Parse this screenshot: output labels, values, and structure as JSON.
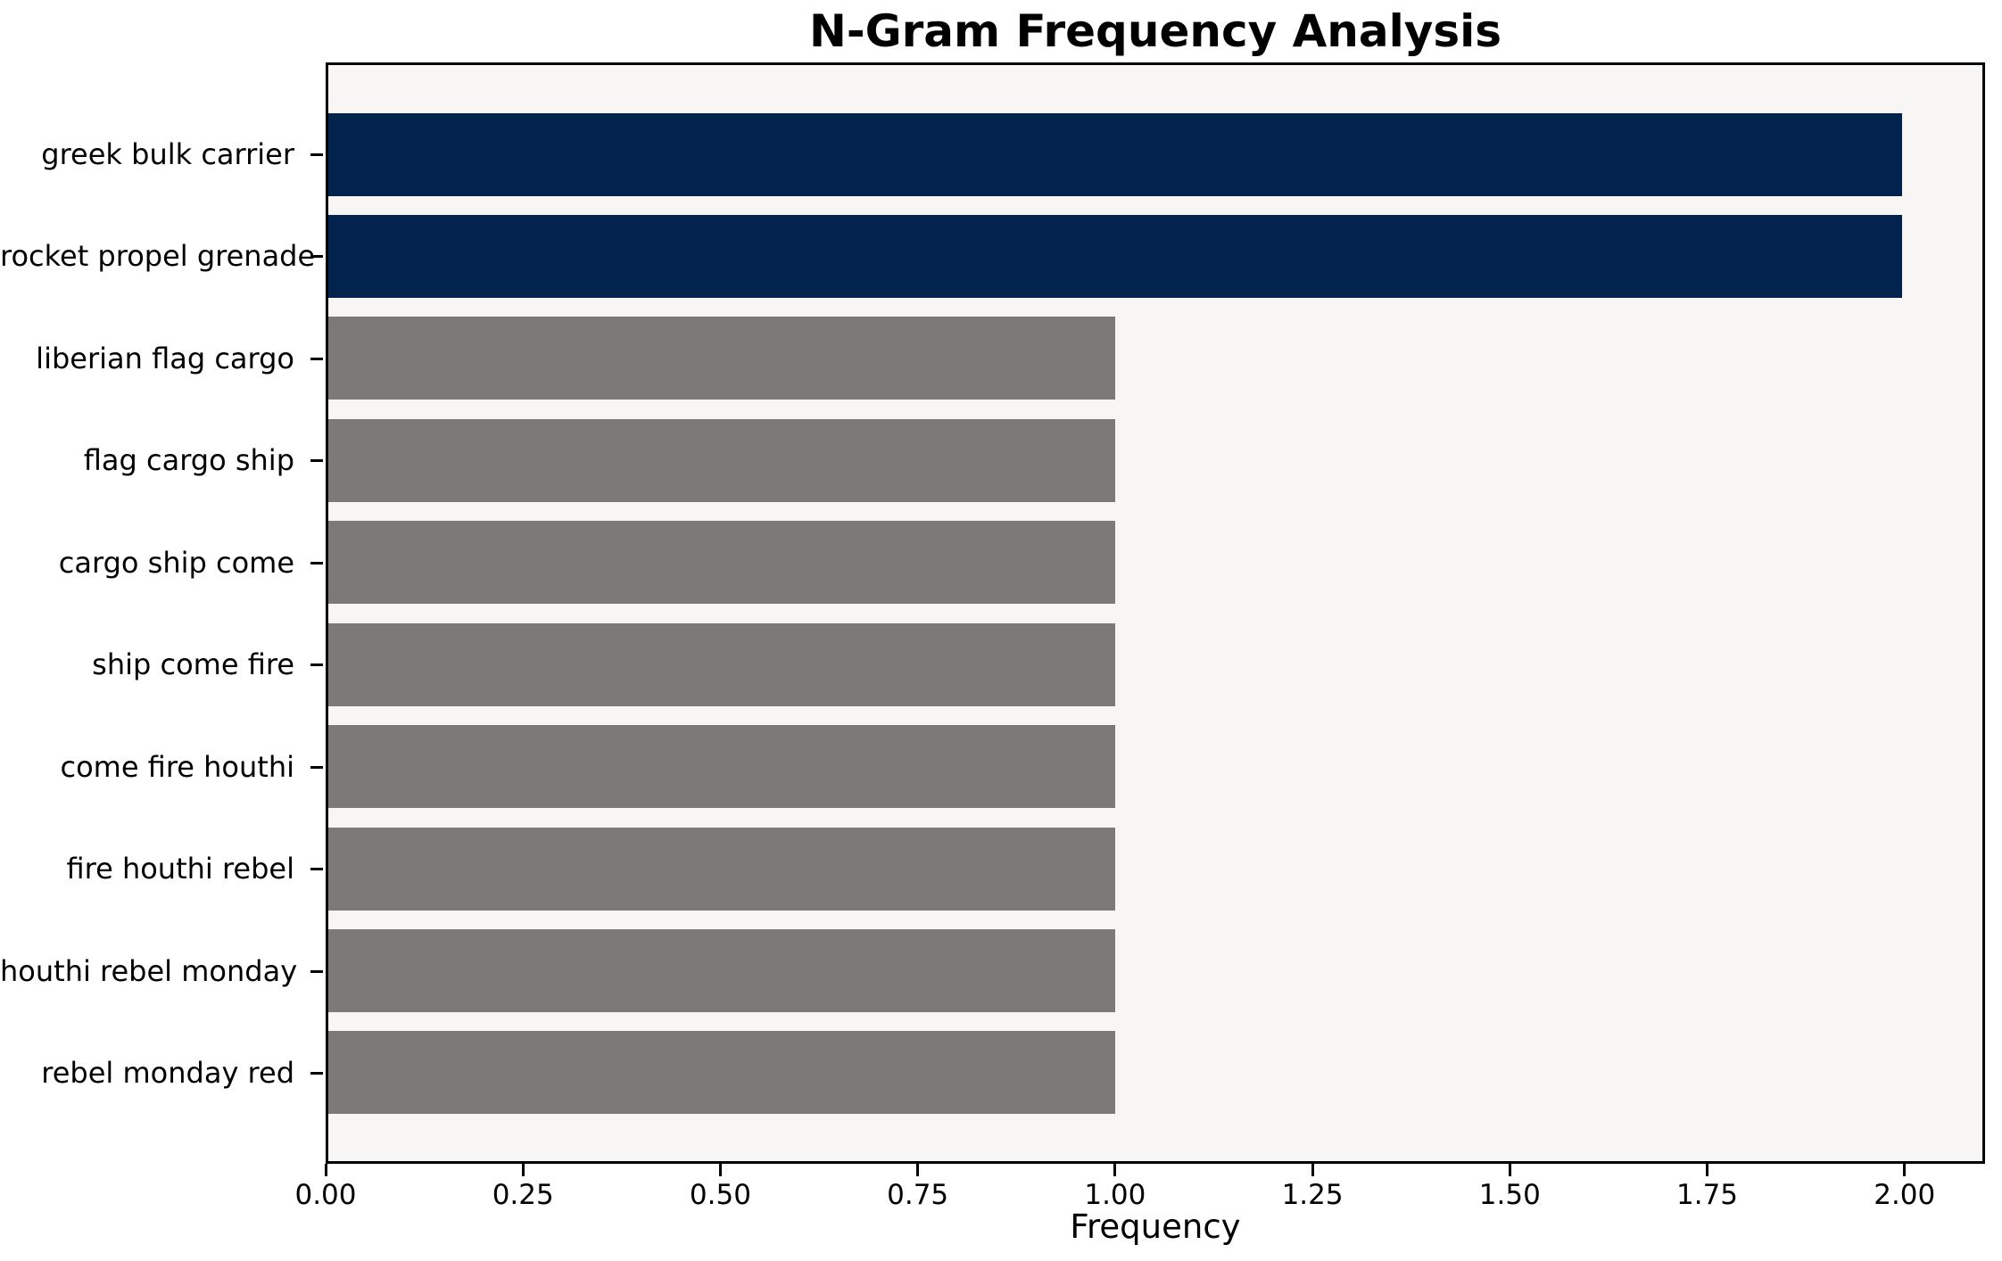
{
  "chart_data": {
    "type": "bar",
    "orientation": "horizontal",
    "title": "N-Gram Frequency Analysis",
    "xlabel": "Frequency",
    "ylabel": "",
    "categories": [
      "greek bulk carrier",
      "rocket propel grenade",
      "liberian flag cargo",
      "flag cargo ship",
      "cargo ship come",
      "ship come fire",
      "come fire houthi",
      "fire houthi rebel",
      "houthi rebel monday",
      "rebel monday red"
    ],
    "values": [
      2,
      2,
      1,
      1,
      1,
      1,
      1,
      1,
      1,
      1
    ],
    "bar_colors": [
      "#02234d",
      "#02234d",
      "#7b7a77",
      "#7b7a77",
      "#7b7a77",
      "#7b7a77",
      "#7b7a77",
      "#7b7a77",
      "#7b7a77",
      "#7b7a77"
    ],
    "xlim": [
      0,
      2.102
    ],
    "xticks": [
      0.0,
      0.25,
      0.5,
      0.75,
      1.0,
      1.25,
      1.5,
      1.75,
      2.0
    ],
    "xtick_labels": [
      "0.00",
      "0.25",
      "0.50",
      "0.75",
      "1.00",
      "1.25",
      "1.50",
      "1.75",
      "2.00"
    ],
    "grid": false,
    "legend": null,
    "colors": {
      "highlight": "#02234d",
      "default": "#7b7a77",
      "plot_bg": "#f7f6f5",
      "figure_bg": "#ffffff",
      "spine": "#000000",
      "text": "#000000"
    }
  }
}
